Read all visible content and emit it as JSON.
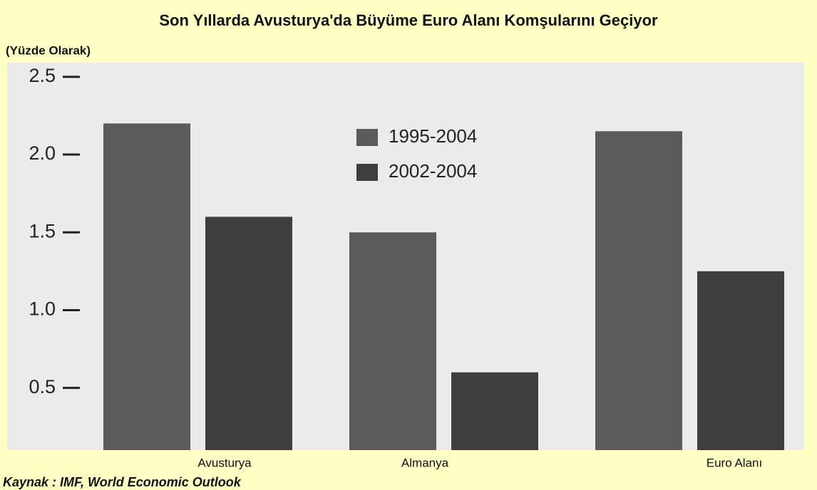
{
  "chart_data": {
    "type": "bar",
    "title": "Son Yıllarda Avusturya'da Büyüme Euro Alanı Komşularını Geçiyor",
    "subtitle": "(Yüzde Olarak)",
    "source": "Kaynak : IMF, World Economic Outlook",
    "categories": [
      "Avusturya",
      "Almanya",
      "Euro Alanı"
    ],
    "series": [
      {
        "name": "1995-2004",
        "color": "#5a5a5a",
        "values": [
          2.2,
          1.5,
          2.15
        ]
      },
      {
        "name": "2002-2004",
        "color": "#3e3e3e",
        "values": [
          1.6,
          0.6,
          1.25
        ]
      }
    ],
    "ylim": [
      0.1,
      2.6
    ],
    "yticks": [
      0.5,
      {
        "value": 1.0,
        "label": "1.0"
      },
      1.5,
      {
        "value": 2.0,
        "label": "2.0"
      },
      2.5
    ],
    "legend": "top-center"
  }
}
